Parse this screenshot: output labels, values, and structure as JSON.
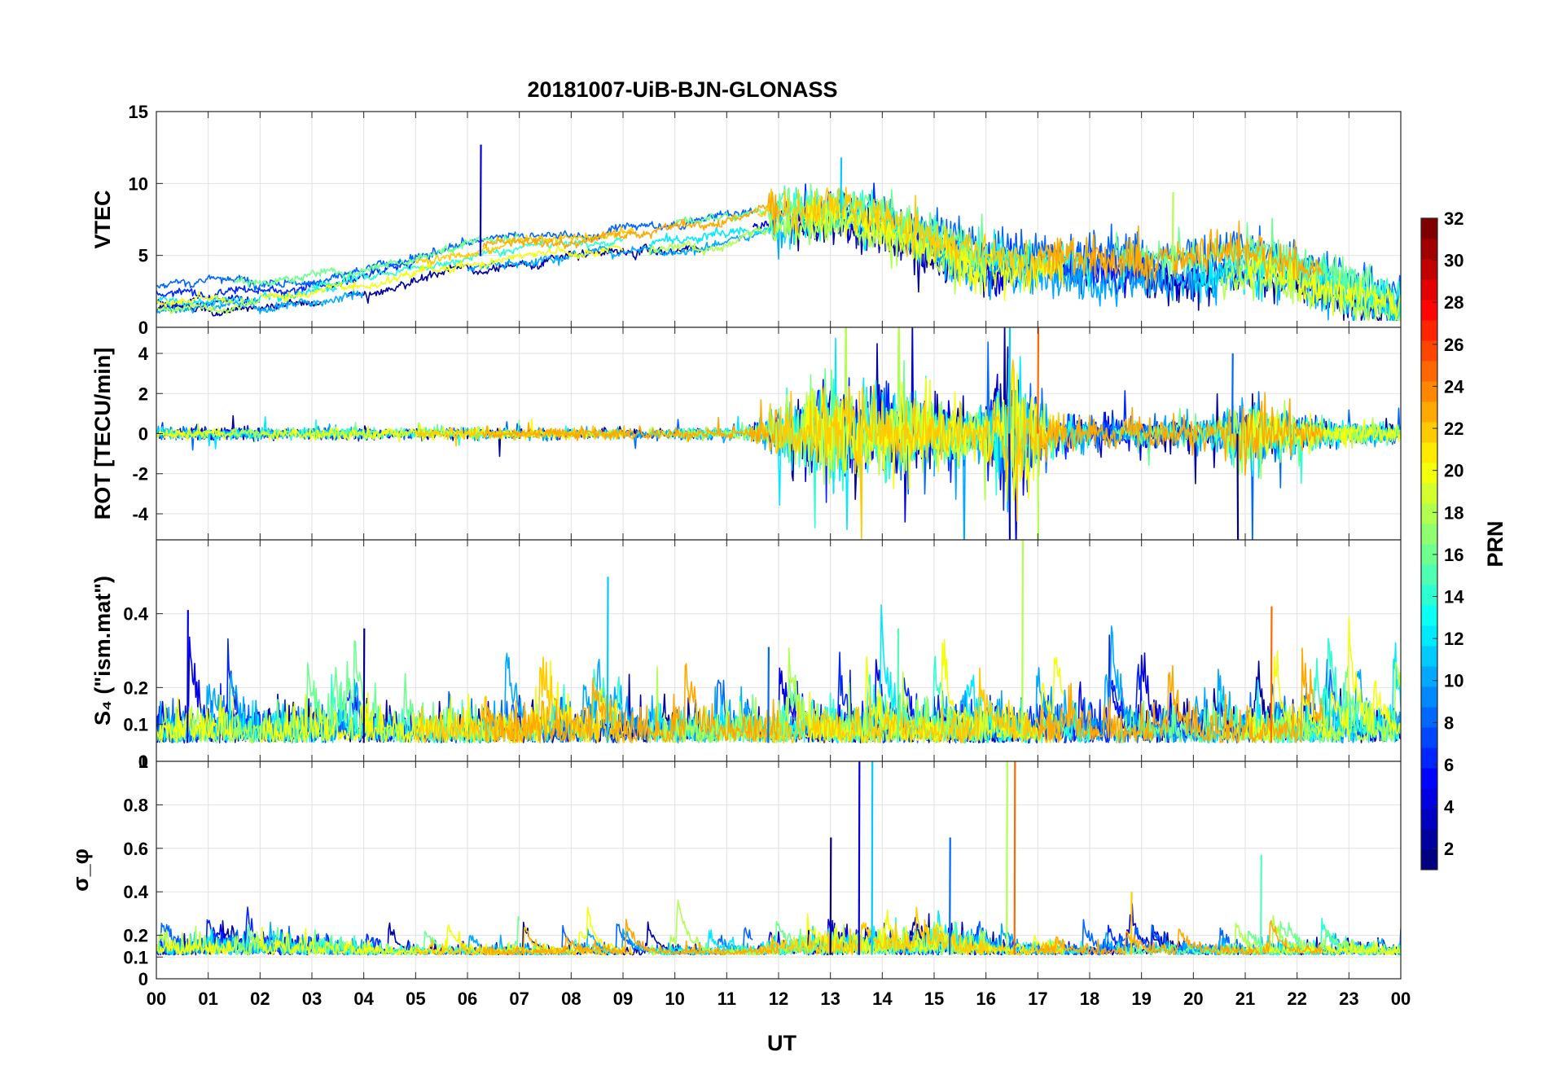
{
  "chart_data": {
    "type": "line",
    "title": "20181007-UiB-BJN-GLONASS",
    "xlabel": "UT",
    "xlim": [
      0,
      24
    ],
    "x_tick_labels": [
      "00",
      "01",
      "02",
      "03",
      "04",
      "05",
      "06",
      "07",
      "08",
      "09",
      "10",
      "11",
      "12",
      "13",
      "14",
      "15",
      "16",
      "17",
      "18",
      "19",
      "20",
      "21",
      "22",
      "23",
      "00"
    ],
    "grid": true,
    "colorbar": {
      "label": "PRN",
      "range": [
        1,
        32
      ],
      "tick_labels": [
        "2",
        "4",
        "6",
        "8",
        "10",
        "12",
        "14",
        "16",
        "18",
        "20",
        "22",
        "24",
        "26",
        "28",
        "30",
        "32"
      ],
      "tick_values": [
        2,
        4,
        6,
        8,
        10,
        12,
        14,
        16,
        18,
        20,
        22,
        24,
        26,
        28,
        30,
        32
      ],
      "colormap": "jet"
    },
    "panels": [
      {
        "id": "vtec",
        "ylabel": "VTEC",
        "ylim": [
          0,
          15
        ],
        "y_tick_values": [
          0,
          5,
          10,
          15
        ],
        "y_tick_labels": [
          "0",
          "5",
          "10",
          "15"
        ],
        "kind": "smooth",
        "envelope": [
          [
            0,
            2.0
          ],
          [
            1,
            2.2
          ],
          [
            2,
            2.3
          ],
          [
            3,
            2.6
          ],
          [
            4,
            3.2
          ],
          [
            5,
            4.2
          ],
          [
            6,
            4.8
          ],
          [
            7,
            5.4
          ],
          [
            8,
            5.7
          ],
          [
            9,
            5.9
          ],
          [
            10,
            6.3
          ],
          [
            11,
            6.8
          ],
          [
            12,
            7.9
          ],
          [
            13,
            8.1
          ],
          [
            14,
            7.3
          ],
          [
            15,
            5.6
          ],
          [
            16,
            4.6
          ],
          [
            17,
            4.3
          ],
          [
            18,
            4.1
          ],
          [
            19,
            4.0
          ],
          [
            20,
            3.9
          ],
          [
            21,
            4.4
          ],
          [
            22,
            3.8
          ],
          [
            23,
            2.6
          ],
          [
            24,
            1.9
          ]
        ],
        "spikes": [
          [
            6.25,
            12.7
          ],
          [
            13.2,
            11.8
          ],
          [
            19.6,
            9.4
          ]
        ]
      },
      {
        "id": "rot",
        "ylabel": "ROT [TECU/min]",
        "ylim": [
          -5.3,
          5.3
        ],
        "y_tick_values": [
          -4,
          -2,
          0,
          2,
          4
        ],
        "y_tick_labels": [
          "-4",
          "-2",
          "0",
          "2",
          "4"
        ],
        "kind": "zero-noise",
        "envelope": [
          [
            0,
            0.3
          ],
          [
            11.3,
            0.3
          ],
          [
            11.8,
            1.0
          ],
          [
            12.3,
            2.0
          ],
          [
            13,
            2.6
          ],
          [
            14,
            2.4
          ],
          [
            15,
            1.8
          ],
          [
            15.9,
            1.2
          ],
          [
            16.4,
            3.8
          ],
          [
            16.9,
            2.6
          ],
          [
            17.3,
            1.0
          ],
          [
            18,
            0.9
          ],
          [
            19,
            0.8
          ],
          [
            20.4,
            0.8
          ],
          [
            20.8,
            2.0
          ],
          [
            21.5,
            1.4
          ],
          [
            22.5,
            0.7
          ],
          [
            24,
            0.5
          ]
        ],
        "spikes": [
          [
            16.45,
            -5.3
          ],
          [
            16.45,
            5.3
          ],
          [
            17.0,
            -5.3
          ],
          [
            17.0,
            5.3
          ],
          [
            20.85,
            -5.3
          ],
          [
            20.75,
            4.0
          ]
        ]
      },
      {
        "id": "s4",
        "ylabel": "S₄ (\"ism.mat\")",
        "ylim": [
          0,
          0.6
        ],
        "y_tick_values": [
          0,
          0.1,
          0.2,
          0.4
        ],
        "y_tick_labels": [
          "0",
          "0.1",
          "0.2",
          "0.4"
        ],
        "kind": "baseline-spiky",
        "baseline": 0.05,
        "envelope": [
          [
            0,
            0.15
          ],
          [
            24,
            0.15
          ]
        ],
        "spikes": [
          [
            0.6,
            0.41
          ],
          [
            8.7,
            0.5
          ],
          [
            16.7,
            0.6
          ],
          [
            21.5,
            0.42
          ],
          [
            4.0,
            0.36
          ],
          [
            11.8,
            0.31
          ],
          [
            14.3,
            0.36
          ]
        ]
      },
      {
        "id": "sigma",
        "ylabel": "σ_φ",
        "ylim": [
          0,
          1
        ],
        "y_tick_values": [
          0,
          0.1,
          0.2,
          0.4,
          0.6,
          0.8,
          1
        ],
        "y_tick_labels": [
          "0",
          "0.1",
          "0.2",
          "0.4",
          "0.6",
          "0.8",
          "1"
        ],
        "kind": "baseline-spiky",
        "baseline": 0.11,
        "envelope": [
          [
            0,
            0.1
          ],
          [
            1.2,
            0.15
          ],
          [
            3.0,
            0.15
          ],
          [
            4.5,
            0.07
          ],
          [
            11.5,
            0.06
          ],
          [
            12.5,
            0.15
          ],
          [
            15.5,
            0.18
          ],
          [
            16.2,
            0.1
          ],
          [
            17.5,
            0.08
          ],
          [
            24,
            0.08
          ]
        ],
        "spikes": [
          [
            13.55,
            1.0
          ],
          [
            13.8,
            1.0
          ],
          [
            16.4,
            1.0
          ],
          [
            16.55,
            1.0
          ],
          [
            13.0,
            0.65
          ],
          [
            15.3,
            0.65
          ],
          [
            21.3,
            0.57
          ],
          [
            18.8,
            0.4
          ]
        ]
      }
    ]
  }
}
